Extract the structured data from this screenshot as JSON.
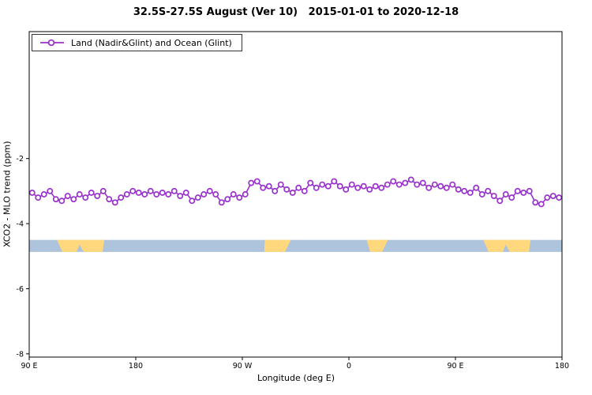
{
  "chart_data": {
    "type": "line",
    "title": "32.5S-27.5S August (Ver 10)   2015-01-01 to 2020-12-18",
    "xlabel": "Longitude (deg E)",
    "ylabel": "XCO2 - MLO trend (ppm)",
    "grid": false,
    "legend": {
      "position": "top-left",
      "entries": [
        {
          "label": "Land (Nadir&Glint) and Ocean (Glint)",
          "color": "#9932CC",
          "marker": "open-circle"
        }
      ]
    },
    "xlim": [
      90,
      540
    ],
    "ylim": [
      -8.1,
      1.9
    ],
    "xticks": [
      {
        "pos": 90,
        "label": "90 E"
      },
      {
        "pos": 180,
        "label": "180"
      },
      {
        "pos": 270,
        "label": "90 W"
      },
      {
        "pos": 360,
        "label": "0"
      },
      {
        "pos": 450,
        "label": "90 E"
      },
      {
        "pos": 540,
        "label": "180"
      }
    ],
    "yticks": [
      {
        "pos": -2,
        "label": "-2"
      },
      {
        "pos": -4,
        "label": "-4"
      },
      {
        "pos": -6,
        "label": "-6"
      },
      {
        "pos": -8,
        "label": "-8"
      }
    ],
    "x": [
      92.5,
      97.5,
      102.5,
      107.5,
      112.5,
      117.5,
      122.5,
      127.5,
      132.5,
      137.5,
      142.5,
      147.5,
      152.5,
      157.5,
      162.5,
      167.5,
      172.5,
      177.5,
      182.5,
      187.5,
      192.5,
      197.5,
      202.5,
      207.5,
      212.5,
      217.5,
      222.5,
      227.5,
      232.5,
      237.5,
      242.5,
      247.5,
      252.5,
      257.5,
      262.5,
      267.5,
      272.5,
      277.5,
      282.5,
      287.5,
      292.5,
      297.5,
      302.5,
      307.5,
      312.5,
      317.5,
      322.5,
      327.5,
      332.5,
      337.5,
      342.5,
      347.5,
      352.5,
      357.5,
      362.5,
      367.5,
      372.5,
      377.5,
      382.5,
      387.5,
      392.5,
      397.5,
      402.5,
      407.5,
      412.5,
      417.5,
      422.5,
      427.5,
      432.5,
      437.5,
      442.5,
      447.5,
      452.5,
      457.5,
      462.5,
      467.5,
      472.5,
      477.5,
      482.5,
      487.5,
      492.5,
      497.5,
      502.5,
      507.5,
      512.5,
      517.5,
      522.5,
      527.5,
      532.5,
      537.5
    ],
    "series": [
      {
        "name": "Land (Nadir&Glint) and Ocean (Glint)",
        "color": "#9932CC",
        "marker": "open-circle",
        "values": [
          -3.05,
          -3.2,
          -3.1,
          -3.0,
          -3.25,
          -3.3,
          -3.15,
          -3.25,
          -3.1,
          -3.2,
          -3.05,
          -3.15,
          -3.0,
          -3.25,
          -3.35,
          -3.2,
          -3.1,
          -3.0,
          -3.05,
          -3.1,
          -3.0,
          -3.1,
          -3.05,
          -3.1,
          -3.0,
          -3.15,
          -3.05,
          -3.3,
          -3.2,
          -3.1,
          -3.0,
          -3.1,
          -3.35,
          -3.25,
          -3.1,
          -3.2,
          -3.1,
          -2.75,
          -2.7,
          -2.9,
          -2.85,
          -3.0,
          -2.8,
          -2.95,
          -3.05,
          -2.9,
          -3.0,
          -2.75,
          -2.9,
          -2.8,
          -2.85,
          -2.7,
          -2.85,
          -2.95,
          -2.8,
          -2.9,
          -2.85,
          -2.95,
          -2.85,
          -2.9,
          -2.8,
          -2.7,
          -2.8,
          -2.75,
          -2.65,
          -2.8,
          -2.75,
          -2.9,
          -2.8,
          -2.85,
          -2.9,
          -2.8,
          -2.95,
          -3.0,
          -3.05,
          -2.9,
          -3.1,
          -3.0,
          -3.15,
          -3.3,
          -3.1,
          -3.2,
          -3.0,
          -3.05,
          -3.0,
          -3.35,
          -3.4,
          -3.2,
          -3.15,
          -3.2
        ]
      }
    ],
    "surface_band": {
      "top": -4.5,
      "bottom": -4.87,
      "ocean_color": "#AEC3DC",
      "land_color": "#FFD87E",
      "land_segments": [
        {
          "points": [
            [
              113.5,
              0
            ],
            [
              153.5,
              0
            ],
            [
              152,
              1
            ],
            [
              136,
              1
            ],
            [
              132.5,
              0.4
            ],
            [
              130,
              1
            ],
            [
              118,
              1
            ]
          ]
        },
        {
          "points": [
            [
              289,
              0
            ],
            [
              311,
              0
            ],
            [
              306,
              1
            ],
            [
              288.5,
              1
            ]
          ]
        },
        {
          "points": [
            [
              375,
              0
            ],
            [
              393,
              0
            ],
            [
              388,
              1
            ],
            [
              378,
              1
            ]
          ]
        },
        {
          "points": [
            [
              473.5,
              0
            ],
            [
              513.5,
              0
            ],
            [
              512,
              1
            ],
            [
              496,
              1
            ],
            [
              492.5,
              0.4
            ],
            [
              490,
              1
            ],
            [
              478,
              1
            ]
          ]
        }
      ]
    }
  }
}
